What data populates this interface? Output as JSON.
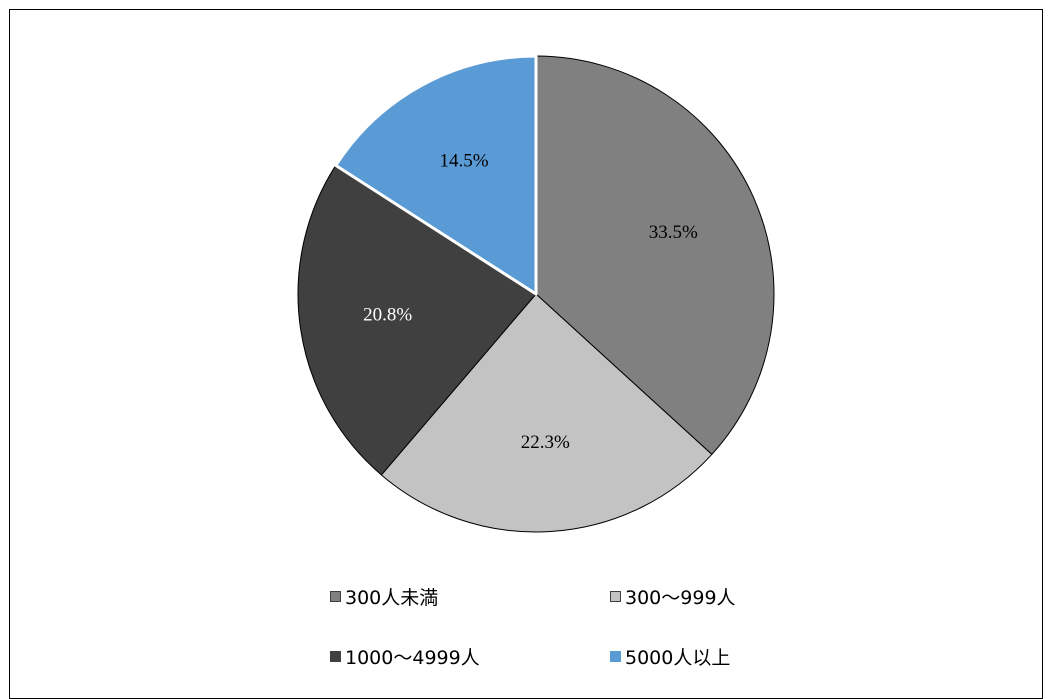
{
  "chart_data": {
    "type": "pie",
    "categories": [
      "300人未満",
      "300〜999人",
      "1000〜4999人",
      "5000人以上"
    ],
    "values": [
      33.5,
      22.3,
      20.8,
      14.5
    ],
    "data_labels": [
      "33.5%",
      "22.3%",
      "20.8%",
      "14.5%"
    ],
    "colors": [
      "#808080",
      "#c4c3c4",
      "#404040",
      "#5b9bd5"
    ],
    "label_colors": [
      "#000000",
      "#000000",
      "#ffffff",
      "#000000"
    ],
    "start_angle_deg": 0,
    "direction": "clockwise",
    "legend_position": "bottom"
  }
}
